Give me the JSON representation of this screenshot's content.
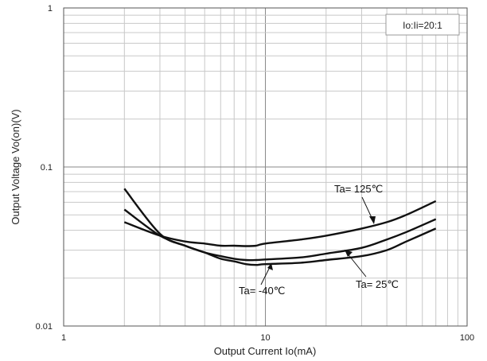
{
  "chart_data": {
    "type": "line",
    "xscale": "log",
    "yscale": "log",
    "xlim": [
      1,
      100
    ],
    "ylim": [
      0.01,
      1
    ],
    "grid": true,
    "xlabel": "Output Current   Io(mA)",
    "ylabel": "Output Voltage  Vo(on)(V)",
    "x_ticks": [
      "1",
      "10",
      "100"
    ],
    "y_ticks": [
      "0.01",
      "0.1",
      "1"
    ],
    "condition_label": "Io:Ii=20:1",
    "series": [
      {
        "name": "Ta= 125℃",
        "x": [
          2,
          3,
          4,
          5,
          6,
          7,
          8,
          9,
          10,
          15,
          20,
          30,
          40,
          50,
          70
        ],
        "y": [
          0.045,
          0.037,
          0.034,
          0.033,
          0.032,
          0.032,
          0.0318,
          0.032,
          0.033,
          0.035,
          0.037,
          0.041,
          0.045,
          0.05,
          0.061
        ]
      },
      {
        "name": "Ta= 25℃",
        "x": [
          2,
          3,
          4,
          5,
          6,
          7,
          8,
          9,
          10,
          15,
          20,
          30,
          40,
          50,
          70
        ],
        "y": [
          0.054,
          0.037,
          0.032,
          0.029,
          0.0275,
          0.0265,
          0.026,
          0.026,
          0.0262,
          0.027,
          0.0285,
          0.031,
          0.035,
          0.039,
          0.047
        ]
      },
      {
        "name": "Ta= -40℃",
        "x": [
          2,
          3,
          4,
          5,
          6,
          7,
          8,
          9,
          10,
          15,
          20,
          30,
          40,
          50,
          70
        ],
        "y": [
          0.073,
          0.038,
          0.032,
          0.029,
          0.0265,
          0.0255,
          0.0245,
          0.0242,
          0.0245,
          0.025,
          0.026,
          0.0275,
          0.03,
          0.034,
          0.041
        ]
      }
    ]
  }
}
